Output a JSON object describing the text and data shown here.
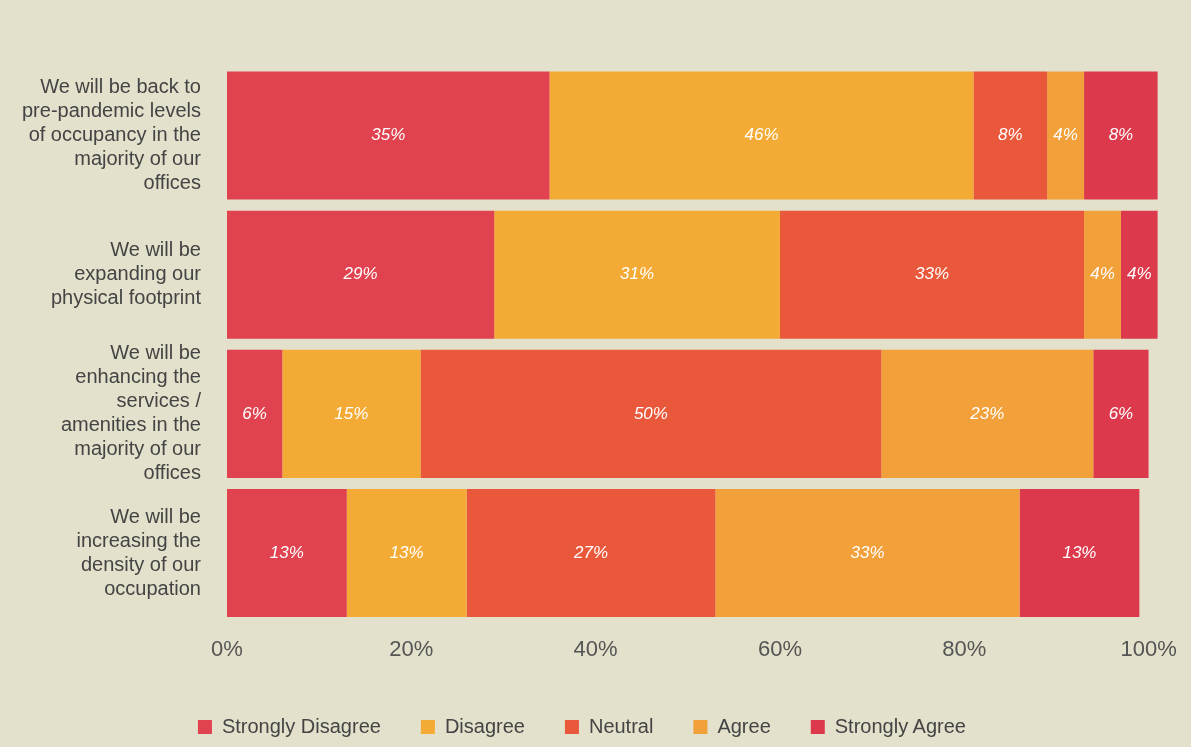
{
  "chart_data": {
    "type": "bar",
    "orientation": "horizontal",
    "stacked": true,
    "categories": [
      "We will be back to pre-pandemic levels of occupancy in the majority of our offices",
      "We will be expanding our physical footprint",
      "We will be enhancing the services / amenities in the majority of our offices",
      "We will be increasing the density of our occupation"
    ],
    "series": [
      {
        "name": "Strongly Disagree",
        "color": "#e0424f",
        "values": [
          35,
          29,
          6,
          13
        ],
        "value_labels": [
          "35%",
          "29%",
          "6%",
          "13%"
        ]
      },
      {
        "name": "Disagree",
        "color": "#f4ab35",
        "values": [
          46,
          31,
          15,
          13
        ],
        "value_labels": [
          "46%",
          "31%",
          "15%",
          "13%"
        ]
      },
      {
        "name": "Neutral",
        "color": "#e9583b",
        "values": [
          8,
          33,
          50,
          27
        ],
        "value_labels": [
          "8%",
          "33%",
          "50%",
          "27%"
        ]
      },
      {
        "name": "Agree",
        "color": "#f2a03a",
        "values": [
          4,
          4,
          23,
          33
        ],
        "value_labels": [
          "4%",
          "4%",
          "23%",
          "33%"
        ]
      },
      {
        "name": "Strongly Agree",
        "color": "#dc3a4c",
        "values": [
          8,
          4,
          6,
          13
        ],
        "value_labels": [
          "8%",
          "4%",
          "6%",
          "13%"
        ]
      }
    ],
    "xlim": [
      0,
      101
    ],
    "xticks": [
      {
        "value": 0,
        "label": "0%"
      },
      {
        "value": 20,
        "label": "20%"
      },
      {
        "value": 40,
        "label": "40%"
      },
      {
        "value": 60,
        "label": "60%"
      },
      {
        "value": 80,
        "label": "80%"
      },
      {
        "value": 100,
        "label": "100%"
      }
    ],
    "grid": false,
    "legend": "bottom"
  }
}
